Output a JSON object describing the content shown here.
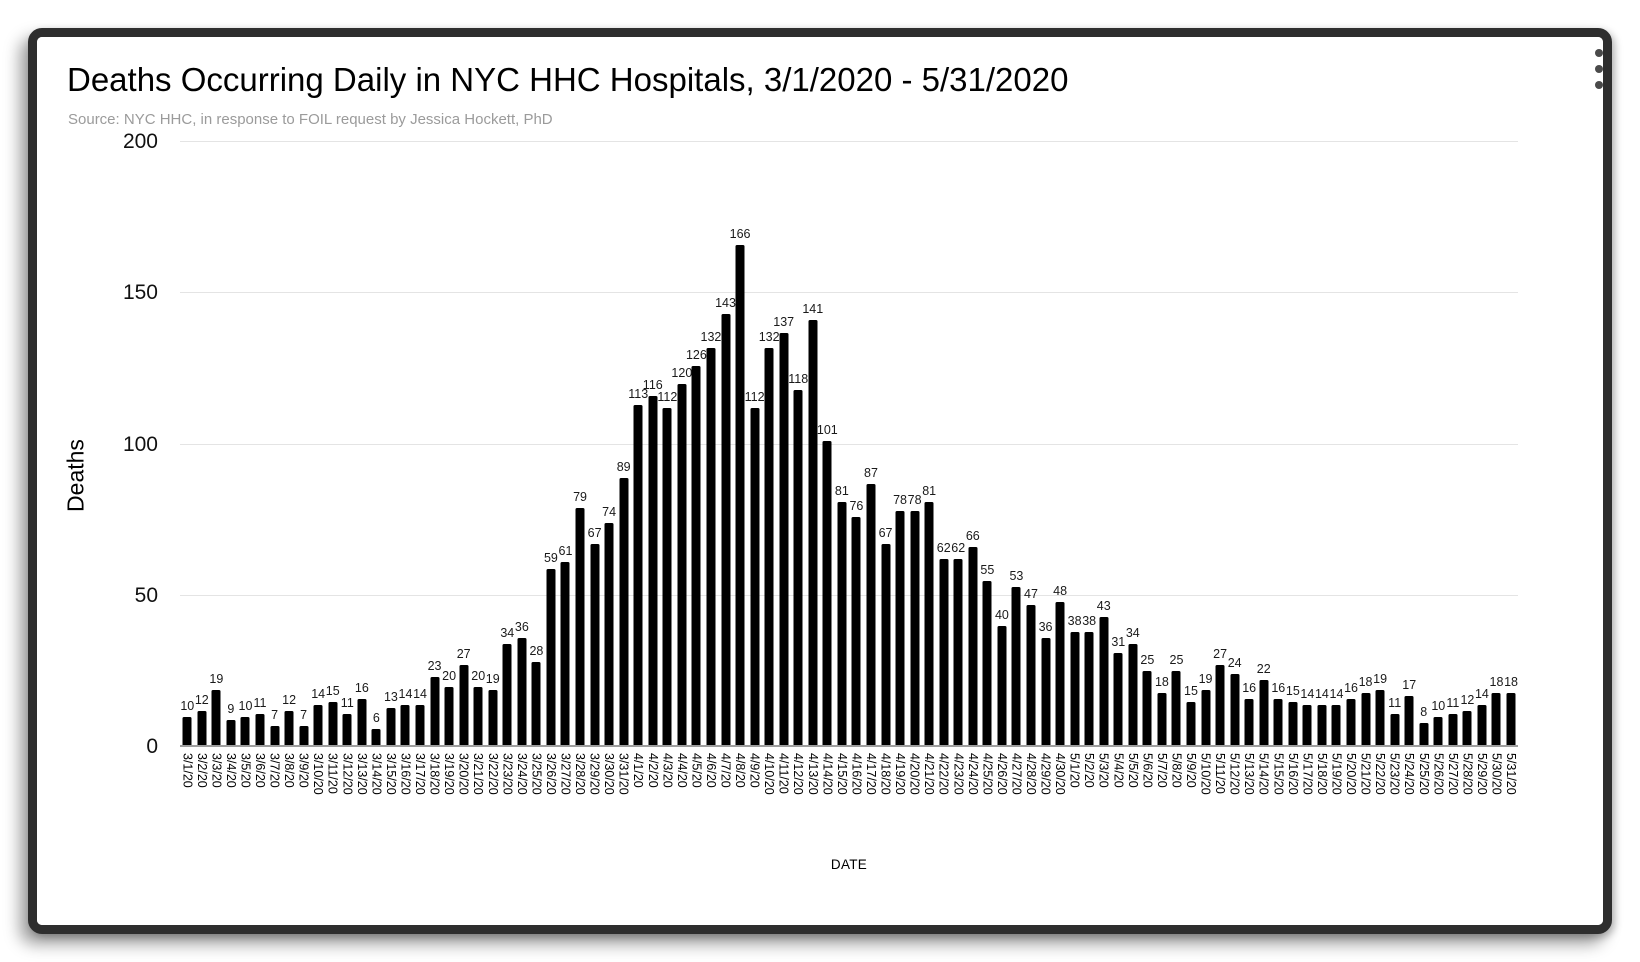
{
  "menu": {
    "icon": "kebab-menu"
  },
  "chart_data": {
    "type": "bar",
    "title": "Deaths Occurring Daily in NYC HHC Hospitals, 3/1/2020 - 5/31/2020",
    "source": "Source: NYC HHC, in response to FOIL request by Jessica Hockett, PhD",
    "xlabel": "DATE",
    "ylabel": "Deaths",
    "ylim": [
      0,
      200
    ],
    "yticks": [
      0,
      50,
      100,
      150,
      200
    ],
    "grid": true,
    "legend": "none",
    "bar_color": "#000000",
    "categories": [
      "3/1/20",
      "3/2/20",
      "3/3/20",
      "3/4/20",
      "3/5/20",
      "3/6/20",
      "3/7/20",
      "3/8/20",
      "3/9/20",
      "3/10/20",
      "3/11/20",
      "3/12/20",
      "3/13/20",
      "3/14/20",
      "3/15/20",
      "3/16/20",
      "3/17/20",
      "3/18/20",
      "3/19/20",
      "3/20/20",
      "3/21/20",
      "3/22/20",
      "3/23/20",
      "3/24/20",
      "3/25/20",
      "3/26/20",
      "3/27/20",
      "3/28/20",
      "3/29/20",
      "3/30/20",
      "3/31/20",
      "4/1/20",
      "4/2/20",
      "4/3/20",
      "4/4/20",
      "4/5/20",
      "4/6/20",
      "4/7/20",
      "4/8/20",
      "4/9/20",
      "4/10/20",
      "4/11/20",
      "4/12/20",
      "4/13/20",
      "4/14/20",
      "4/15/20",
      "4/16/20",
      "4/17/20",
      "4/18/20",
      "4/19/20",
      "4/20/20",
      "4/21/20",
      "4/22/20",
      "4/23/20",
      "4/24/20",
      "4/25/20",
      "4/26/20",
      "4/27/20",
      "4/28/20",
      "4/29/20",
      "4/30/20",
      "5/1/20",
      "5/2/20",
      "5/3/20",
      "5/4/20",
      "5/5/20",
      "5/6/20",
      "5/7/20",
      "5/8/20",
      "5/9/20",
      "5/10/20",
      "5/11/20",
      "5/12/20",
      "5/13/20",
      "5/14/20",
      "5/15/20",
      "5/16/20",
      "5/17/20",
      "5/18/20",
      "5/19/20",
      "5/20/20",
      "5/21/20",
      "5/22/20",
      "5/23/20",
      "5/24/20",
      "5/25/20",
      "5/26/20",
      "5/27/20",
      "5/28/20",
      "5/29/20",
      "5/30/20",
      "5/31/20"
    ],
    "values": [
      10,
      12,
      19,
      9,
      10,
      11,
      7,
      12,
      7,
      14,
      15,
      11,
      16,
      6,
      13,
      14,
      14,
      23,
      20,
      27,
      20,
      19,
      34,
      36,
      28,
      59,
      61,
      79,
      67,
      74,
      89,
      113,
      116,
      112,
      120,
      126,
      132,
      143,
      166,
      112,
      132,
      137,
      118,
      141,
      101,
      81,
      76,
      87,
      67,
      78,
      78,
      81,
      62,
      62,
      66,
      55,
      40,
      53,
      47,
      36,
      48,
      38,
      38,
      43,
      31,
      34,
      25,
      18,
      25,
      15,
      19,
      27,
      24,
      16,
      22,
      16,
      15,
      14,
      14,
      14,
      16,
      18,
      19,
      11,
      17,
      8,
      10,
      11,
      12,
      14,
      18,
      18
    ]
  }
}
